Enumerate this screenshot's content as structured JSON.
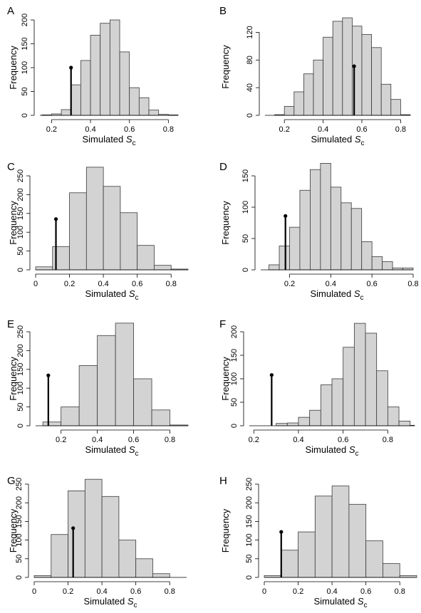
{
  "chart_data": [
    {
      "panel": "A",
      "type": "bar",
      "xlabel_main": "Simulated ",
      "xlabel_italic": "S",
      "xlabel_sub": "c",
      "ylabel": "Frequency",
      "xlim": [
        0.14,
        0.85
      ],
      "ylim": [
        0,
        200
      ],
      "xticks": [
        0.2,
        0.4,
        0.6,
        0.8
      ],
      "yticks": [
        0,
        50,
        100,
        150,
        200
      ],
      "bins": [
        [
          0.15,
          0.2,
          1
        ],
        [
          0.2,
          0.25,
          3
        ],
        [
          0.25,
          0.3,
          12
        ],
        [
          0.3,
          0.35,
          64
        ],
        [
          0.35,
          0.4,
          115
        ],
        [
          0.4,
          0.45,
          168
        ],
        [
          0.45,
          0.5,
          193
        ],
        [
          0.5,
          0.55,
          200
        ],
        [
          0.55,
          0.6,
          133
        ],
        [
          0.6,
          0.65,
          58
        ],
        [
          0.65,
          0.7,
          37
        ],
        [
          0.7,
          0.75,
          11
        ],
        [
          0.75,
          0.8,
          2
        ],
        [
          0.8,
          0.85,
          1
        ]
      ],
      "observed": {
        "x": 0.3,
        "y": 100
      }
    },
    {
      "panel": "B",
      "type": "bar",
      "xlabel_main": "Simulated ",
      "xlabel_italic": "S",
      "xlabel_sub": "c",
      "ylabel": "Frequency",
      "xlim": [
        0.1,
        0.85
      ],
      "ylim": [
        0,
        140
      ],
      "xticks": [
        0.2,
        0.4,
        0.6,
        0.8
      ],
      "yticks": [
        0,
        40,
        80,
        120
      ],
      "bins": [
        [
          0.1,
          0.15,
          0
        ],
        [
          0.15,
          0.2,
          1
        ],
        [
          0.2,
          0.25,
          13
        ],
        [
          0.25,
          0.3,
          34
        ],
        [
          0.3,
          0.35,
          60
        ],
        [
          0.35,
          0.4,
          80
        ],
        [
          0.4,
          0.45,
          113
        ],
        [
          0.45,
          0.5,
          136
        ],
        [
          0.5,
          0.55,
          141
        ],
        [
          0.55,
          0.6,
          129
        ],
        [
          0.6,
          0.65,
          117
        ],
        [
          0.65,
          0.7,
          98
        ],
        [
          0.7,
          0.75,
          45
        ],
        [
          0.75,
          0.8,
          23
        ],
        [
          0.8,
          0.85,
          1
        ]
      ],
      "observed": {
        "x": 0.56,
        "y": 71
      }
    },
    {
      "panel": "C",
      "type": "bar",
      "xlabel_main": "Simulated ",
      "xlabel_italic": "S",
      "xlabel_sub": "c",
      "ylabel": "Frequency",
      "xlim": [
        0.0,
        0.9
      ],
      "ylim": [
        0,
        250
      ],
      "xticks": [
        0.0,
        0.2,
        0.4,
        0.6,
        0.8
      ],
      "yticks": [
        0,
        50,
        100,
        150,
        200,
        250
      ],
      "bins": [
        [
          0.0,
          0.1,
          8
        ],
        [
          0.1,
          0.2,
          62
        ],
        [
          0.2,
          0.3,
          205
        ],
        [
          0.3,
          0.4,
          273
        ],
        [
          0.4,
          0.5,
          222
        ],
        [
          0.5,
          0.6,
          152
        ],
        [
          0.6,
          0.7,
          65
        ],
        [
          0.7,
          0.8,
          12
        ],
        [
          0.8,
          0.9,
          2
        ]
      ],
      "observed": {
        "x": 0.12,
        "y": 135
      }
    },
    {
      "panel": "D",
      "type": "bar",
      "xlabel_main": "Simulated ",
      "xlabel_italic": "S",
      "xlabel_sub": "c",
      "ylabel": "Frequency",
      "xlim": [
        0.06,
        0.8
      ],
      "ylim": [
        0,
        150
      ],
      "xticks": [
        0.2,
        0.4,
        0.6,
        0.8
      ],
      "yticks": [
        0,
        50,
        100,
        150
      ],
      "bins": [
        [
          0.1,
          0.15,
          8
        ],
        [
          0.15,
          0.2,
          38
        ],
        [
          0.2,
          0.25,
          68
        ],
        [
          0.25,
          0.3,
          127
        ],
        [
          0.3,
          0.35,
          160
        ],
        [
          0.35,
          0.4,
          170
        ],
        [
          0.4,
          0.45,
          132
        ],
        [
          0.45,
          0.5,
          107
        ],
        [
          0.5,
          0.55,
          98
        ],
        [
          0.55,
          0.6,
          45
        ],
        [
          0.6,
          0.65,
          21
        ],
        [
          0.65,
          0.7,
          13
        ],
        [
          0.7,
          0.75,
          3
        ],
        [
          0.75,
          0.8,
          3
        ]
      ],
      "observed": {
        "x": 0.18,
        "y": 86
      }
    },
    {
      "panel": "E",
      "type": "bar",
      "xlabel_main": "Simulated ",
      "xlabel_italic": "S",
      "xlabel_sub": "c",
      "ylabel": "Frequency",
      "xlim": [
        0.06,
        0.9
      ],
      "ylim": [
        0,
        250
      ],
      "xticks": [
        0.2,
        0.4,
        0.6,
        0.8
      ],
      "yticks": [
        0,
        50,
        100,
        150,
        200,
        250
      ],
      "bins": [
        [
          0.1,
          0.2,
          10
        ],
        [
          0.2,
          0.3,
          50
        ],
        [
          0.3,
          0.4,
          160
        ],
        [
          0.4,
          0.5,
          240
        ],
        [
          0.5,
          0.6,
          273
        ],
        [
          0.6,
          0.7,
          125
        ],
        [
          0.7,
          0.8,
          42
        ],
        [
          0.8,
          0.9,
          2
        ]
      ],
      "observed": {
        "x": 0.13,
        "y": 134
      }
    },
    {
      "panel": "F",
      "type": "bar",
      "xlabel_main": "Simulated ",
      "xlabel_italic": "S",
      "xlabel_sub": "c",
      "ylabel": "Frequency",
      "xlim": [
        0.18,
        0.92
      ],
      "ylim": [
        0,
        200
      ],
      "xticks": [
        0.2,
        0.4,
        0.6,
        0.8
      ],
      "yticks": [
        0,
        50,
        100,
        150,
        200
      ],
      "bins": [
        [
          0.3,
          0.35,
          5
        ],
        [
          0.35,
          0.4,
          6
        ],
        [
          0.4,
          0.45,
          18
        ],
        [
          0.45,
          0.5,
          33
        ],
        [
          0.5,
          0.55,
          87
        ],
        [
          0.55,
          0.6,
          100
        ],
        [
          0.6,
          0.65,
          167
        ],
        [
          0.65,
          0.7,
          218
        ],
        [
          0.7,
          0.75,
          197
        ],
        [
          0.75,
          0.8,
          117
        ],
        [
          0.8,
          0.85,
          40
        ],
        [
          0.85,
          0.9,
          10
        ],
        [
          0.9,
          0.92,
          1
        ]
      ],
      "observed": {
        "x": 0.28,
        "y": 108
      }
    },
    {
      "panel": "G",
      "type": "bar",
      "xlabel_main": "Simulated ",
      "xlabel_italic": "S",
      "xlabel_sub": "c",
      "ylabel": "Frequency",
      "xlim": [
        0.0,
        0.9
      ],
      "ylim": [
        0,
        250
      ],
      "xticks": [
        0.0,
        0.2,
        0.4,
        0.6,
        0.8
      ],
      "yticks": [
        0,
        50,
        100,
        150,
        200,
        250
      ],
      "bins": [
        [
          0.0,
          0.1,
          5
        ],
        [
          0.1,
          0.2,
          115
        ],
        [
          0.2,
          0.3,
          232
        ],
        [
          0.3,
          0.4,
          263
        ],
        [
          0.4,
          0.5,
          217
        ],
        [
          0.5,
          0.6,
          100
        ],
        [
          0.6,
          0.7,
          50
        ],
        [
          0.7,
          0.8,
          10
        ]
      ],
      "observed": {
        "x": 0.23,
        "y": 132
      }
    },
    {
      "panel": "H",
      "type": "bar",
      "xlabel_main": "Simulated ",
      "xlabel_italic": "S",
      "xlabel_sub": "c",
      "ylabel": "Frequency",
      "xlim": [
        0.0,
        0.9
      ],
      "ylim": [
        0,
        250
      ],
      "xticks": [
        0.0,
        0.2,
        0.4,
        0.6,
        0.8
      ],
      "yticks": [
        0,
        50,
        100,
        150,
        200,
        250
      ],
      "bins": [
        [
          0.0,
          0.1,
          5
        ],
        [
          0.1,
          0.2,
          73
        ],
        [
          0.2,
          0.3,
          122
        ],
        [
          0.3,
          0.4,
          218
        ],
        [
          0.4,
          0.5,
          245
        ],
        [
          0.5,
          0.6,
          196
        ],
        [
          0.6,
          0.7,
          98
        ],
        [
          0.7,
          0.8,
          37
        ],
        [
          0.8,
          0.9,
          5
        ]
      ],
      "observed": {
        "x": 0.1,
        "y": 122
      }
    }
  ]
}
